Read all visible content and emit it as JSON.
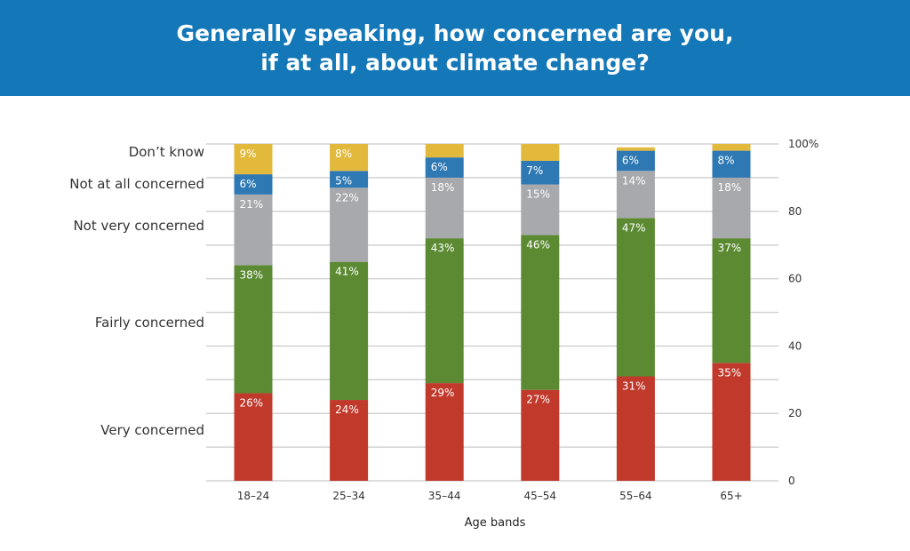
{
  "header": {
    "title_line1": "Generally speaking, how concerned are you,",
    "title_line2": "if at all, about climate change?"
  },
  "chart_data": {
    "type": "bar",
    "stacked": true,
    "title": "Generally speaking, how concerned are you, if at all, about climate change?",
    "xlabel": "Age bands",
    "ylabel": "",
    "ylim": [
      0,
      100
    ],
    "y_ticks": [
      0,
      20,
      40,
      60,
      80,
      100
    ],
    "y_tick_labels": [
      "0",
      "20",
      "40",
      "60",
      "80",
      "100%"
    ],
    "y_axis_side": "right",
    "grid": true,
    "legend": "left",
    "categories": [
      "18–24",
      "25–34",
      "35–44",
      "45–54",
      "55–64",
      "65+"
    ],
    "series": [
      {
        "name": "Very concerned",
        "color": "#c0392b",
        "values": [
          26,
          24,
          29,
          27,
          31,
          35
        ],
        "labels": [
          "26%",
          "24%",
          "29%",
          "27%",
          "31%",
          "35%"
        ]
      },
      {
        "name": "Fairly concerned",
        "color": "#5b8a32",
        "values": [
          38,
          41,
          43,
          46,
          47,
          37
        ],
        "labels": [
          "38%",
          "41%",
          "43%",
          "46%",
          "47%",
          "37%"
        ]
      },
      {
        "name": "Not very concerned",
        "color": "#a7a9ac",
        "values": [
          21,
          22,
          18,
          15,
          14,
          18
        ],
        "labels": [
          "21%",
          "22%",
          "18%",
          "15%",
          "14%",
          "18%"
        ]
      },
      {
        "name": "Not at all concerned",
        "color": "#2e78b4",
        "values": [
          6,
          5,
          6,
          7,
          6,
          8
        ],
        "labels": [
          "6%",
          "5%",
          "6%",
          "7%",
          "6%",
          "8%"
        ]
      },
      {
        "name": "Don’t know",
        "color": "#e2b93b",
        "values": [
          9,
          8,
          4,
          5,
          1,
          2
        ],
        "labels": [
          "9%",
          "8%",
          "",
          "",
          "",
          ""
        ]
      }
    ]
  }
}
